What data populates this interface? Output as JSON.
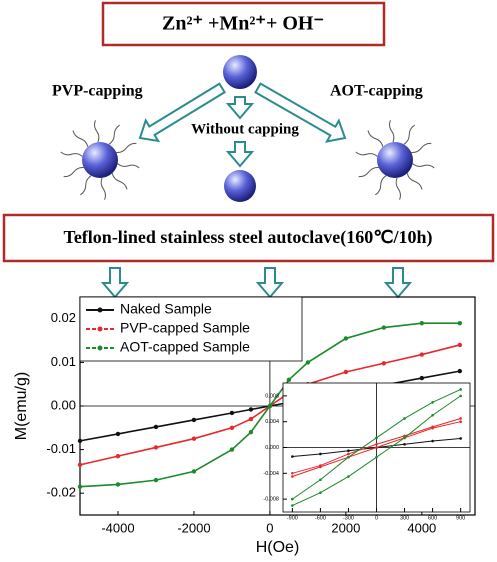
{
  "scheme": {
    "reactants": "Zn²⁺ +Mn²⁺+ OH⁻",
    "left_label": "PVP-capping",
    "right_label": "AOT-capping",
    "middle_label": "Without capping",
    "process": "Teflon-lined stainless steel autoclave(160℃/10h)"
  },
  "chart_data": [
    {
      "type": "line",
      "xlabel": "H(Oe)",
      "ylabel": "M(emu/g)",
      "xlim": [
        -5000,
        5400
      ],
      "ylim": [
        -0.025,
        0.025
      ],
      "xticks": [
        -4000,
        -2000,
        0,
        2000,
        4000
      ],
      "yticks": [
        -0.02,
        -0.01,
        {
          "value": 0,
          "label": "0.00"
        },
        0.01,
        0.02
      ],
      "legend": "upper left",
      "x": [
        -5000,
        -4000,
        -3000,
        -2000,
        -1000,
        -500,
        0,
        500,
        1000,
        2000,
        3000,
        4000,
        5000
      ],
      "series": [
        {
          "name": "Naked Sample",
          "color": "#111111",
          "values": [
            -0.008,
            -0.0064,
            -0.0048,
            -0.0032,
            -0.0016,
            -0.0008,
            0,
            0.0008,
            0.0016,
            0.0032,
            0.0048,
            0.0064,
            0.008
          ]
        },
        {
          "name": "PVP-capped Sample",
          "color": "#e8282a",
          "values": [
            -0.0135,
            -0.0115,
            -0.0095,
            -0.0075,
            -0.005,
            -0.003,
            0,
            0.003,
            0.005,
            0.0078,
            0.0098,
            0.0118,
            0.014
          ]
        },
        {
          "name": "AOT-capped Sample",
          "color": "#1a8a2a",
          "values": [
            -0.0185,
            -0.018,
            -0.017,
            -0.015,
            -0.01,
            -0.006,
            0,
            0.006,
            0.01,
            0.0155,
            0.018,
            0.019,
            0.019
          ]
        }
      ]
    },
    {
      "type": "line",
      "xlim": [
        -1000,
        1000
      ],
      "ylim": [
        -0.01,
        0.01
      ],
      "xticks": [
        -900,
        -600,
        -300,
        0,
        300,
        600,
        900
      ],
      "yticks": [
        -0.008,
        -0.004,
        {
          "value": 0,
          "label": "0.000"
        },
        0.004,
        0.008
      ],
      "x": [
        -900,
        -600,
        -300,
        0,
        300,
        600,
        900
      ],
      "series": [
        {
          "color": "#111111",
          "values": [
            -0.0014,
            -0.001,
            -0.0005,
            0,
            0.0005,
            0.001,
            0.0014
          ]
        },
        {
          "color": "#e8282a",
          "values": [
            -0.0045,
            -0.003,
            -0.0015,
            0,
            0.0015,
            0.003,
            0.004
          ]
        },
        {
          "color": "#e8282a",
          "values": [
            -0.004,
            -0.0028,
            -0.001,
            0.0005,
            0.0018,
            0.0032,
            0.0045
          ]
        },
        {
          "color": "#1a8a2a",
          "values": [
            -0.009,
            -0.007,
            -0.0045,
            -0.0015,
            0.0015,
            0.005,
            0.008
          ]
        },
        {
          "color": "#1a8a2a",
          "values": [
            -0.008,
            -0.005,
            -0.0015,
            0.0015,
            0.0045,
            0.007,
            0.009
          ]
        }
      ]
    }
  ]
}
